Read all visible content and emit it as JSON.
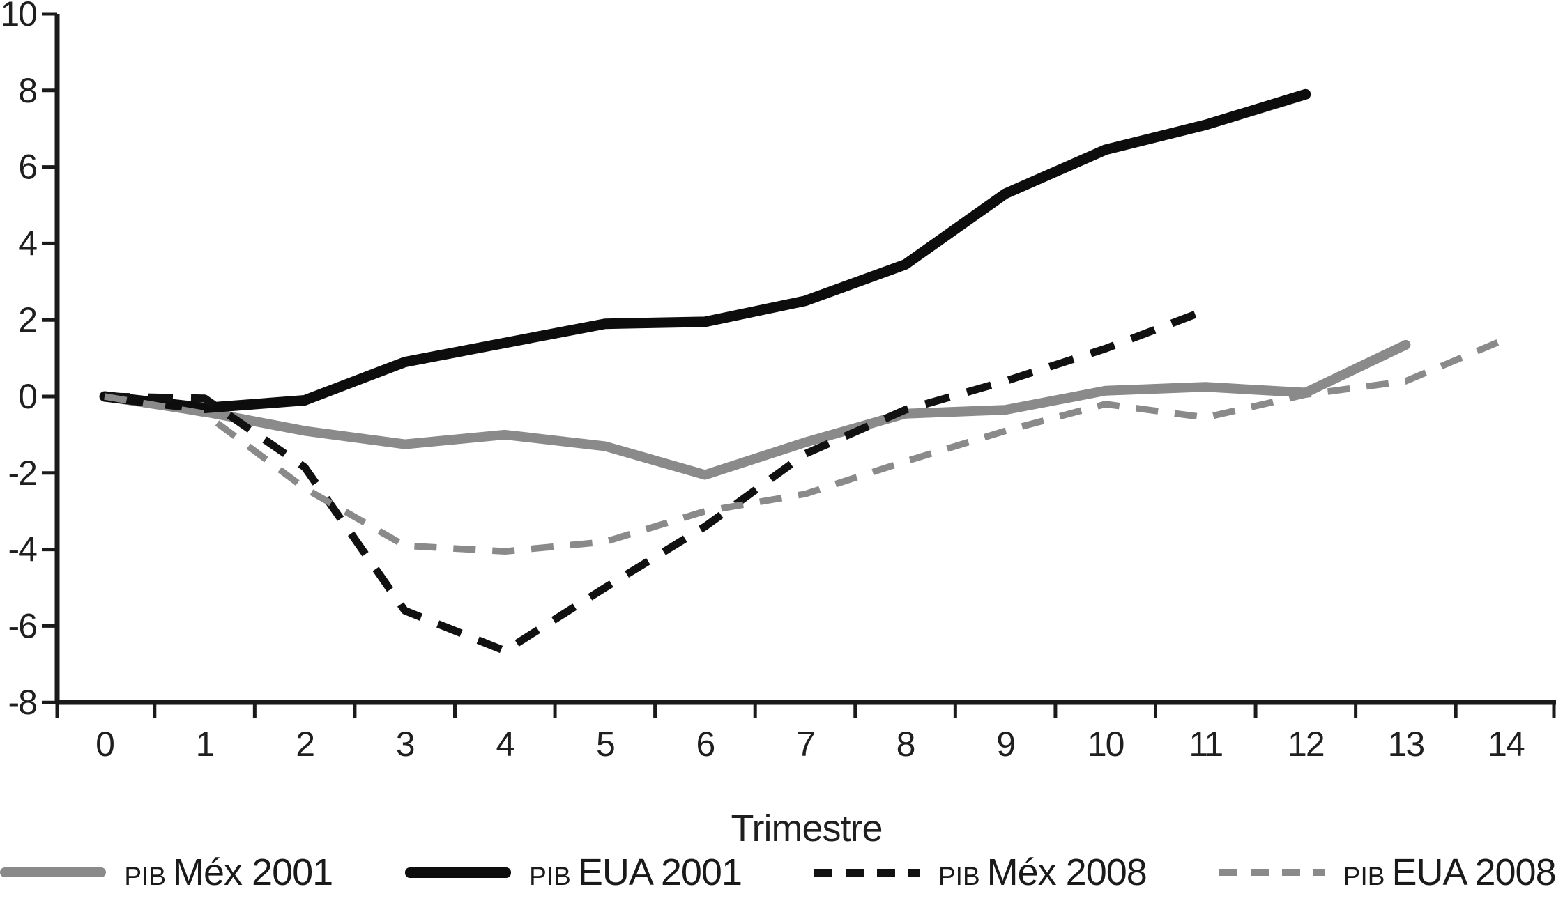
{
  "figure": {
    "background": "#ffffff",
    "axis_color": "#1a1a1a",
    "xlabel": "Trimestre"
  },
  "chart_data": {
    "type": "line",
    "title": "",
    "xlabel": "Trimestre",
    "ylabel": "",
    "xlim": [
      -0.5,
      14.5
    ],
    "ylim": [
      -8,
      10
    ],
    "grid": false,
    "legend_position": "bottom",
    "x_ticks": [
      0,
      1,
      2,
      3,
      4,
      5,
      6,
      7,
      8,
      9,
      10,
      11,
      12,
      13,
      14
    ],
    "y_ticks": [
      10,
      8,
      6,
      4,
      2,
      0,
      -2,
      -4,
      -6,
      -8
    ],
    "series": [
      {
        "name": "PIB Méx 2001",
        "legend_prefix": "PIB",
        "legend_label": "Méx 2001",
        "style": "solid",
        "color": "#8a8a8a",
        "stroke_width": 14,
        "x": [
          0,
          1,
          2,
          3,
          4,
          5,
          6,
          7,
          8,
          9,
          10,
          11,
          12,
          13
        ],
        "values": [
          0,
          -0.4,
          -0.9,
          -1.25,
          -1.0,
          -1.3,
          -2.05,
          -1.2,
          -0.45,
          -0.35,
          0.15,
          0.25,
          0.1,
          1.35
        ]
      },
      {
        "name": "PIB EUA 2001",
        "legend_prefix": "PIB",
        "legend_label": "EUA 2001",
        "style": "solid",
        "color": "#0d0d0d",
        "stroke_width": 15,
        "x": [
          0,
          1,
          2,
          3,
          4,
          5,
          6,
          7,
          8,
          9,
          10,
          11,
          12
        ],
        "values": [
          0,
          -0.3,
          -0.1,
          0.9,
          1.4,
          1.9,
          1.95,
          2.5,
          3.45,
          5.3,
          6.45,
          7.1,
          7.9
        ]
      },
      {
        "name": "PIB Méx 2008",
        "legend_prefix": "PIB",
        "legend_label": "Méx 2008",
        "style": "dashed",
        "color": "#111111",
        "stroke_width": 11,
        "dash": "36 26",
        "x": [
          0,
          1,
          2,
          3,
          4,
          5,
          6,
          7,
          8,
          9,
          10,
          11
        ],
        "values": [
          0,
          -0.05,
          -1.85,
          -5.6,
          -6.65,
          -5.0,
          -3.4,
          -1.5,
          -0.35,
          0.4,
          1.25,
          2.25
        ]
      },
      {
        "name": "PIB EUA 2008",
        "legend_prefix": "PIB",
        "legend_label": "EUA 2008",
        "style": "dashed",
        "color": "#8a8a8a",
        "stroke_width": 9.5,
        "dash": "32 24",
        "x": [
          0,
          1,
          2,
          3,
          4,
          5,
          6,
          7,
          8,
          9,
          10,
          11,
          12,
          13,
          14
        ],
        "values": [
          0,
          -0.45,
          -2.4,
          -3.9,
          -4.05,
          -3.8,
          -3.0,
          -2.55,
          -1.7,
          -0.9,
          -0.2,
          -0.55,
          0.05,
          0.4,
          1.5
        ]
      }
    ]
  }
}
